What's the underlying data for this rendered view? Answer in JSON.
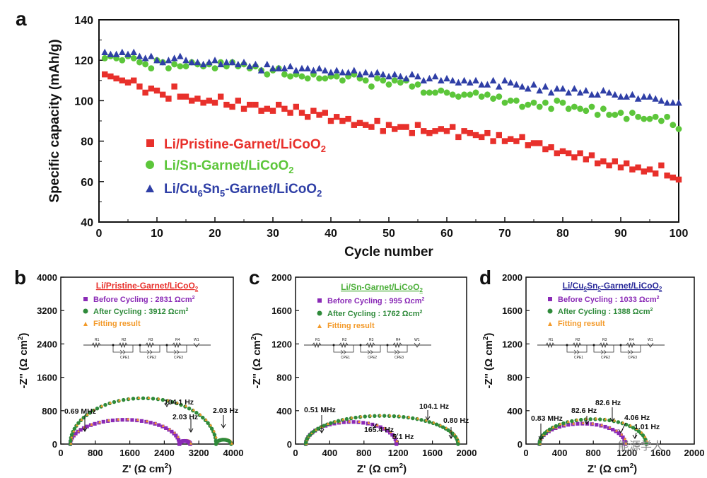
{
  "colors": {
    "red": "#e8302b",
    "green": "#5cc63a",
    "blue": "#2f3fa6",
    "purple": "#8a2ab6",
    "darkgreen": "#2e8a3a",
    "orange": "#f39a2a",
    "title_b": "#e8302b",
    "title_c": "#4caf3a",
    "title_d": "#2a2a9a"
  },
  "watermark": "能源学人",
  "chart_data": [
    {
      "id": "a",
      "panel_label": "a",
      "type": "scatter",
      "xlabel": "Cycle number",
      "ylabel": "Specific capacity (mAh/g)",
      "xlim": [
        0,
        100
      ],
      "ylim": [
        40,
        140
      ],
      "xticks": [
        0,
        10,
        20,
        30,
        40,
        50,
        60,
        70,
        80,
        90,
        100
      ],
      "yticks": [
        40,
        60,
        80,
        100,
        120,
        140
      ],
      "legend_position": "left-middle",
      "series": [
        {
          "name": "Li/Pristine-Garnet/LiCoO2",
          "marker": "square",
          "color": "#e8302b",
          "x": [
            1,
            2,
            3,
            4,
            5,
            6,
            7,
            8,
            9,
            10,
            11,
            12,
            13,
            14,
            15,
            16,
            17,
            18,
            19,
            20,
            21,
            22,
            23,
            24,
            25,
            26,
            27,
            28,
            29,
            30,
            31,
            32,
            33,
            34,
            35,
            36,
            37,
            38,
            39,
            40,
            41,
            42,
            43,
            44,
            45,
            46,
            47,
            48,
            49,
            50,
            51,
            52,
            53,
            54,
            55,
            56,
            57,
            58,
            59,
            60,
            61,
            62,
            63,
            64,
            65,
            66,
            67,
            68,
            69,
            70,
            71,
            72,
            73,
            74,
            75,
            76,
            77,
            78,
            79,
            80,
            81,
            82,
            83,
            84,
            85,
            86,
            87,
            88,
            89,
            90,
            91,
            92,
            93,
            94,
            95,
            96,
            97,
            98,
            99,
            100
          ],
          "y": [
            113,
            112,
            111,
            110,
            109,
            110,
            107,
            104,
            106,
            105,
            103,
            101,
            107,
            102,
            102,
            100,
            101,
            99,
            100,
            99,
            102,
            98,
            97,
            100,
            96,
            98,
            98,
            95,
            96,
            95,
            98,
            96,
            94,
            97,
            94,
            92,
            95,
            93,
            94,
            90,
            92,
            90,
            91,
            88,
            89,
            88,
            87,
            90,
            85,
            88,
            86,
            87,
            87,
            84,
            88,
            85,
            84,
            85,
            86,
            85,
            87,
            82,
            85,
            84,
            83,
            82,
            84,
            80,
            83,
            80,
            81,
            80,
            82,
            78,
            79,
            79,
            76,
            77,
            74,
            75,
            74,
            72,
            74,
            71,
            73,
            69,
            70,
            68,
            70,
            67,
            69,
            66,
            67,
            65,
            66,
            64,
            68,
            63,
            62,
            61
          ]
        },
        {
          "name": "Li/Sn-Garnet/LiCoO2",
          "marker": "circle",
          "color": "#5cc63a",
          "x": [
            1,
            2,
            3,
            4,
            5,
            6,
            7,
            8,
            9,
            10,
            11,
            12,
            13,
            14,
            15,
            16,
            17,
            18,
            19,
            20,
            21,
            22,
            23,
            24,
            25,
            26,
            27,
            28,
            29,
            30,
            31,
            32,
            33,
            34,
            35,
            36,
            37,
            38,
            39,
            40,
            41,
            42,
            43,
            44,
            45,
            46,
            47,
            48,
            49,
            50,
            51,
            52,
            53,
            54,
            55,
            56,
            57,
            58,
            59,
            60,
            61,
            62,
            63,
            64,
            65,
            66,
            67,
            68,
            69,
            70,
            71,
            72,
            73,
            74,
            75,
            76,
            77,
            78,
            79,
            80,
            81,
            82,
            83,
            84,
            85,
            86,
            87,
            88,
            89,
            90,
            91,
            92,
            93,
            94,
            95,
            96,
            97,
            98,
            99,
            100
          ],
          "y": [
            121,
            122,
            121,
            120,
            122,
            121,
            119,
            118,
            116,
            120,
            119,
            116,
            118,
            117,
            117,
            119,
            118,
            117,
            118,
            116,
            119,
            117,
            119,
            117,
            118,
            116,
            117,
            115,
            113,
            115,
            116,
            113,
            112,
            113,
            112,
            111,
            113,
            111,
            111,
            112,
            112,
            110,
            112,
            113,
            111,
            110,
            107,
            111,
            110,
            108,
            110,
            109,
            110,
            107,
            108,
            104,
            104,
            104,
            105,
            104,
            103,
            102,
            103,
            103,
            104,
            102,
            103,
            101,
            102,
            99,
            100,
            100,
            97,
            98,
            99,
            97,
            99,
            96,
            100,
            99,
            96,
            97,
            96,
            95,
            97,
            93,
            96,
            93,
            93,
            94,
            91,
            94,
            92,
            91,
            91,
            92,
            90,
            92,
            88,
            86
          ]
        },
        {
          "name": "Li/Cu6Sn5-Garnet/LiCoO2",
          "marker": "triangle",
          "color": "#2f3fa6",
          "x": [
            1,
            2,
            3,
            4,
            5,
            6,
            7,
            8,
            9,
            10,
            11,
            12,
            13,
            14,
            15,
            16,
            17,
            18,
            19,
            20,
            21,
            22,
            23,
            24,
            25,
            26,
            27,
            28,
            29,
            30,
            31,
            32,
            33,
            34,
            35,
            36,
            37,
            38,
            39,
            40,
            41,
            42,
            43,
            44,
            45,
            46,
            47,
            48,
            49,
            50,
            51,
            52,
            53,
            54,
            55,
            56,
            57,
            58,
            59,
            60,
            61,
            62,
            63,
            64,
            65,
            66,
            67,
            68,
            69,
            70,
            71,
            72,
            73,
            74,
            75,
            76,
            77,
            78,
            79,
            80,
            81,
            82,
            83,
            84,
            85,
            86,
            87,
            88,
            89,
            90,
            91,
            92,
            93,
            94,
            95,
            96,
            97,
            98,
            99,
            100
          ],
          "y": [
            124,
            123,
            123,
            124,
            123,
            124,
            122,
            121,
            122,
            120,
            119,
            120,
            121,
            122,
            120,
            119,
            119,
            118,
            119,
            120,
            118,
            119,
            119,
            118,
            119,
            117,
            118,
            115,
            118,
            116,
            116,
            116,
            117,
            115,
            116,
            116,
            115,
            116,
            115,
            114,
            115,
            114,
            114,
            115,
            113,
            114,
            113,
            114,
            113,
            112,
            113,
            112,
            111,
            113,
            112,
            110,
            111,
            112,
            110,
            111,
            110,
            109,
            110,
            109,
            110,
            108,
            108,
            110,
            107,
            110,
            109,
            108,
            107,
            106,
            108,
            105,
            107,
            104,
            106,
            106,
            104,
            106,
            104,
            105,
            103,
            103,
            105,
            104,
            103,
            102,
            102,
            103,
            101,
            102,
            102,
            101,
            100,
            99,
            99,
            99
          ]
        }
      ]
    },
    {
      "id": "b",
      "panel_label": "b",
      "type": "scatter",
      "title": "Li/Pristine-Garnet/LiCoO2",
      "xlabel": "Z' (Ω cm2)",
      "ylabel": "-Z'' (Ω cm2)",
      "xlim": [
        0,
        4000
      ],
      "ylim": [
        0,
        4000
      ],
      "xticks": [
        0,
        800,
        1600,
        2400,
        3200,
        4000
      ],
      "yticks": [
        0,
        800,
        1600,
        2400,
        3200,
        4000
      ],
      "series": [
        {
          "name": "Before Cycling : 2831 Ωcm2",
          "marker": "square",
          "color": "#8a2ab6",
          "arcs": [
            [
              220,
              2750,
              0.46
            ],
            [
              2750,
              3000,
              0.6
            ]
          ]
        },
        {
          "name": "After Cycling : 3912 Ωcm2",
          "marker": "circle",
          "color": "#2e8a3a",
          "arcs": [
            [
              220,
              3600,
              0.65
            ],
            [
              3600,
              3950,
              0.6
            ]
          ]
        },
        {
          "name": "Fitting result",
          "marker": "triangle",
          "color": "#f39a2a",
          "arcs": []
        }
      ],
      "annotations": [
        "0.69 MHz",
        "104.1 Hz",
        "2.03 Hz",
        "2.03 Hz"
      ],
      "circuit": [
        "R1",
        "R2",
        "R3",
        "R4",
        "W1",
        "CPE1",
        "CPE2",
        "CPE3"
      ]
    },
    {
      "id": "c",
      "panel_label": "c",
      "type": "scatter",
      "title": "Li/Sn-Garnet/LiCoO2",
      "xlabel": "Z' (Ω cm2)",
      "ylabel": "-Z'' (Ω cm2)",
      "xlim": [
        0,
        2000
      ],
      "ylim": [
        0,
        2000
      ],
      "xticks": [
        0,
        400,
        800,
        1200,
        1600,
        2000
      ],
      "yticks": [
        0,
        400,
        800,
        1200,
        1600,
        2000
      ],
      "series": [
        {
          "name": "Before Cycling : 995 Ωcm2",
          "marker": "square",
          "color": "#8a2ab6",
          "arcs": [
            [
              120,
              1180,
              0.5
            ]
          ]
        },
        {
          "name": "After Cycling : 1762 Ωcm2",
          "marker": "circle",
          "color": "#2e8a3a",
          "arcs": [
            [
              120,
              1900,
              0.38
            ]
          ]
        },
        {
          "name": "Fitting result",
          "marker": "triangle",
          "color": "#f39a2a",
          "arcs": []
        }
      ],
      "annotations": [
        "0.51 MHz",
        "165.4 Hz",
        "5.1 Hz",
        "104.1 Hz",
        "0.80 Hz"
      ],
      "circuit": [
        "R1",
        "R2",
        "R3",
        "R4",
        "W1",
        "CPE1",
        "CPE2",
        "CPE3"
      ]
    },
    {
      "id": "d",
      "panel_label": "d",
      "type": "scatter",
      "title": "Li/Cu6Sn5-Garnet/LiCoO2",
      "xlabel": "Z' (Ω cm2)",
      "ylabel": "-Z'' (Ω cm2)",
      "xlim": [
        0,
        2000
      ],
      "ylim": [
        0,
        2000
      ],
      "xticks": [
        0,
        400,
        800,
        1200,
        1600,
        2000
      ],
      "yticks": [
        0,
        400,
        800,
        1200,
        1600,
        2000
      ],
      "series": [
        {
          "name": "Before Cycling : 1033 Ωcm2",
          "marker": "square",
          "color": "#8a2ab6",
          "arcs": [
            [
              160,
              1180,
              0.48
            ]
          ]
        },
        {
          "name": "After Cycling : 1388 Ωcm2",
          "marker": "circle",
          "color": "#2e8a3a",
          "arcs": [
            [
              160,
              1430,
              0.47
            ]
          ]
        },
        {
          "name": "Fitting result",
          "marker": "triangle",
          "color": "#f39a2a",
          "arcs": []
        }
      ],
      "annotations": [
        "0.83 MHz",
        "82.6 Hz",
        "82.6 Hz",
        "4.06 Hz",
        "1.01 Hz"
      ],
      "circuit": [
        "R1",
        "R2",
        "R3",
        "R4",
        "W1",
        "CPE1",
        "CPE2",
        "CPE3"
      ]
    }
  ]
}
